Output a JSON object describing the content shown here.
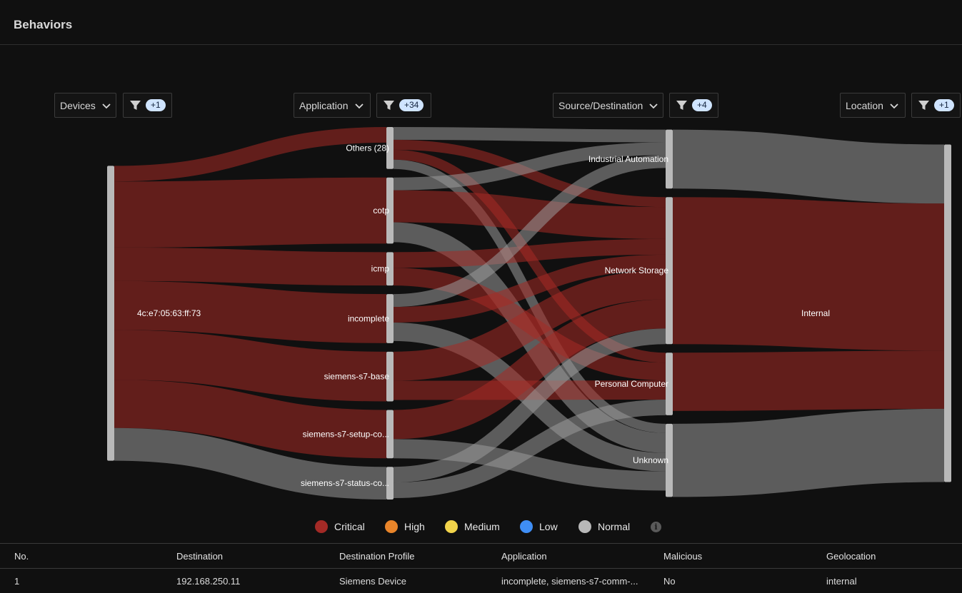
{
  "header": {
    "title": "Behaviors"
  },
  "columns": [
    {
      "label": "Devices",
      "filter_badge": "+1"
    },
    {
      "label": "Application",
      "filter_badge": "+34"
    },
    {
      "label": "Source/Destination",
      "filter_badge": "+4"
    },
    {
      "label": "Location",
      "filter_badge": "+1"
    }
  ],
  "chart_data": {
    "type": "sankey",
    "columns": [
      "Devices",
      "Application",
      "Source/Destination",
      "Location"
    ],
    "nodes": [
      {
        "id": "device",
        "label": "4c:e7:05:63:ff:73",
        "column": 0
      },
      {
        "id": "others",
        "label": "Others (28)",
        "column": 1
      },
      {
        "id": "cotp",
        "label": "cotp",
        "column": 1
      },
      {
        "id": "icmp",
        "label": "icmp",
        "column": 1
      },
      {
        "id": "incomplete",
        "label": "incomplete",
        "column": 1
      },
      {
        "id": "s7base",
        "label": "siemens-s7-base",
        "column": 1
      },
      {
        "id": "s7setup",
        "label": "siemens-s7-setup-co...",
        "column": 1
      },
      {
        "id": "s7status",
        "label": "siemens-s7-status-co...",
        "column": 1
      },
      {
        "id": "industrial",
        "label": "Industrial Automation",
        "column": 2
      },
      {
        "id": "storage",
        "label": "Network Storage",
        "column": 2
      },
      {
        "id": "pc",
        "label": "Personal Computer",
        "column": 2
      },
      {
        "id": "unknown",
        "label": "Unknown",
        "column": 2
      },
      {
        "id": "internal",
        "label": "Internal",
        "column": 3
      }
    ],
    "links": [
      {
        "source": "device",
        "target": "others",
        "value": 22,
        "severity": "Critical"
      },
      {
        "source": "device",
        "target": "cotp",
        "value": 93,
        "severity": "Critical"
      },
      {
        "source": "device",
        "target": "icmp",
        "value": 47,
        "severity": "Critical"
      },
      {
        "source": "device",
        "target": "incomplete",
        "value": 69,
        "severity": "Critical"
      },
      {
        "source": "device",
        "target": "s7base",
        "value": 70,
        "severity": "Critical"
      },
      {
        "source": "device",
        "target": "s7setup",
        "value": 68,
        "severity": "Critical"
      },
      {
        "source": "device",
        "target": "s7status",
        "value": 46,
        "severity": "Normal"
      },
      {
        "source": "others",
        "target": "industrial",
        "value": 18,
        "severity": "Normal"
      },
      {
        "source": "others",
        "target": "storage",
        "value": 14,
        "severity": "Critical"
      },
      {
        "source": "others",
        "target": "pc",
        "value": 14,
        "severity": "Critical"
      },
      {
        "source": "others",
        "target": "unknown",
        "value": 13,
        "severity": "Normal"
      },
      {
        "source": "cotp",
        "target": "industrial",
        "value": 18,
        "severity": "Normal"
      },
      {
        "source": "cotp",
        "target": "storage",
        "value": 45,
        "severity": "Critical"
      },
      {
        "source": "cotp",
        "target": "unknown",
        "value": 28,
        "severity": "Normal"
      },
      {
        "source": "icmp",
        "target": "storage",
        "value": 22,
        "severity": "Critical"
      },
      {
        "source": "icmp",
        "target": "pc",
        "value": 25,
        "severity": "Critical"
      },
      {
        "source": "incomplete",
        "target": "industrial",
        "value": 18,
        "severity": "Normal"
      },
      {
        "source": "incomplete",
        "target": "storage",
        "value": 22,
        "severity": "Critical"
      },
      {
        "source": "incomplete",
        "target": "unknown",
        "value": 26,
        "severity": "Normal"
      },
      {
        "source": "s7base",
        "target": "storage",
        "value": 41,
        "severity": "Critical"
      },
      {
        "source": "s7base",
        "target": "pc",
        "value": 27,
        "severity": "Critical"
      },
      {
        "source": "s7setup",
        "target": "storage",
        "value": 41,
        "severity": "Critical"
      },
      {
        "source": "s7setup",
        "target": "unknown",
        "value": 27,
        "severity": "Normal"
      },
      {
        "source": "s7status",
        "target": "storage",
        "value": 22,
        "severity": "Normal"
      },
      {
        "source": "s7status",
        "target": "pc",
        "value": 22,
        "severity": "Normal"
      },
      {
        "source": "industrial",
        "target": "internal",
        "value": 83,
        "severity": "Normal"
      },
      {
        "source": "storage",
        "target": "internal",
        "value": 207,
        "severity": "Critical"
      },
      {
        "source": "pc",
        "target": "internal",
        "value": 82,
        "severity": "Critical"
      },
      {
        "source": "unknown",
        "target": "internal",
        "value": 103,
        "severity": "Normal"
      }
    ],
    "severity_colors": {
      "Critical": "#a52a25",
      "Normal": "#9a9a9a"
    },
    "title": "",
    "xlabel": "",
    "ylabel": ""
  },
  "legend": [
    {
      "label": "Critical",
      "color": "#a32a26"
    },
    {
      "label": "High",
      "color": "#e9852a"
    },
    {
      "label": "Medium",
      "color": "#f2d44b"
    },
    {
      "label": "Low",
      "color": "#3f8ef5"
    },
    {
      "label": "Normal",
      "color": "#b8b8b8"
    }
  ],
  "table": {
    "headers": [
      "No.",
      "Destination",
      "Destination Profile",
      "Application",
      "Malicious",
      "Geolocation"
    ],
    "rows": [
      [
        "1",
        "192.168.250.11",
        "Siemens Device",
        "incomplete, siemens-s7-comm-...",
        "No",
        "internal"
      ]
    ]
  }
}
